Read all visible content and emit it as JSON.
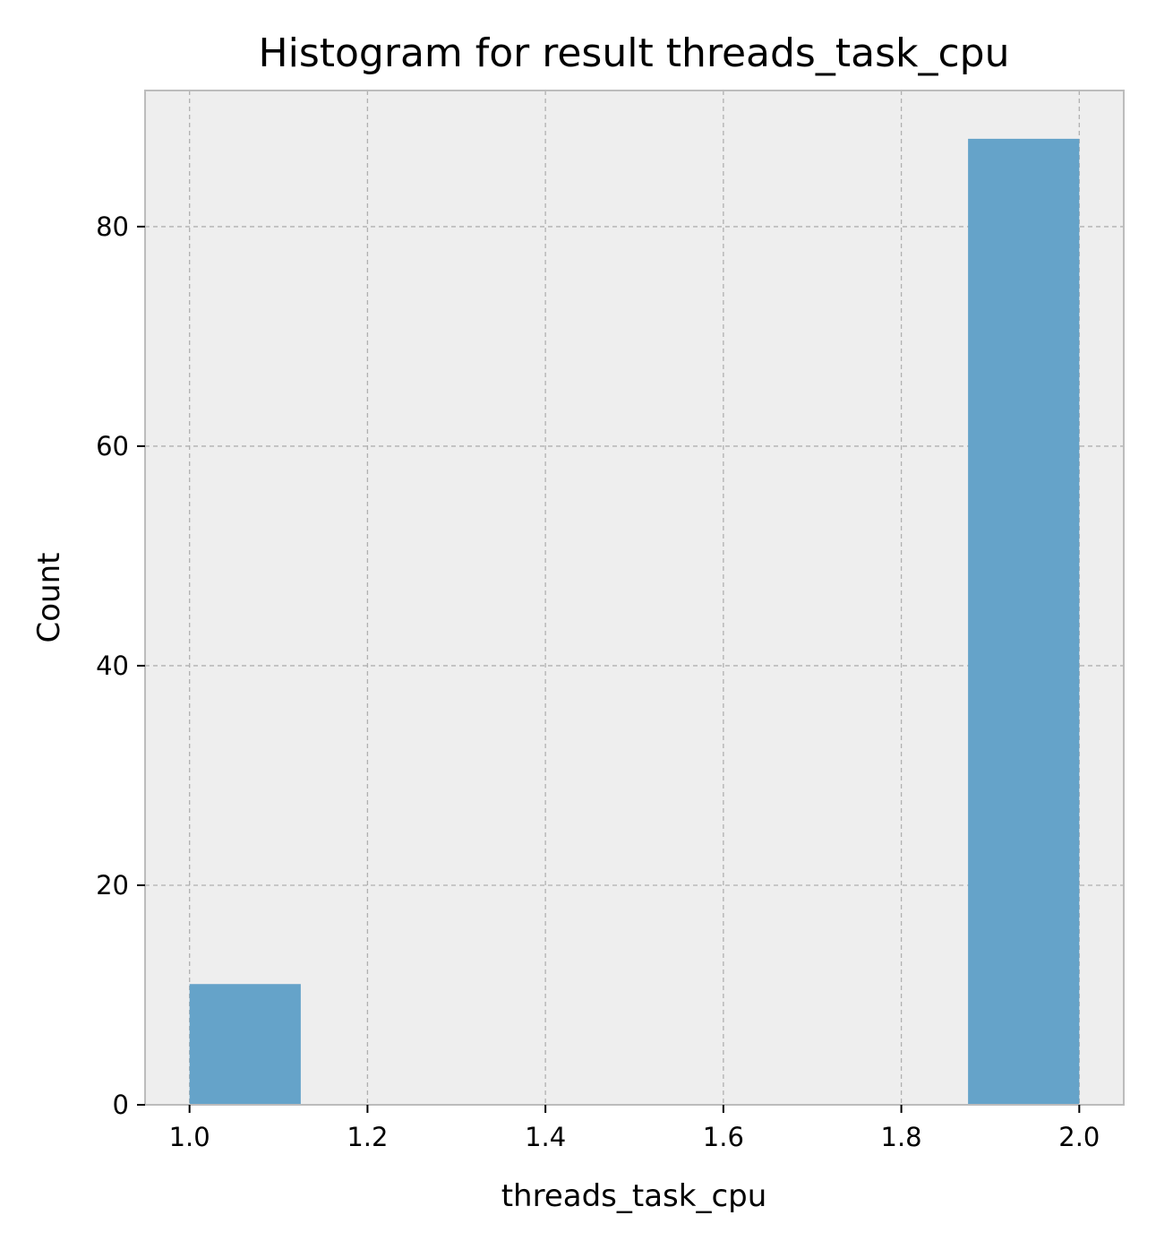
{
  "chart_data": {
    "type": "bar",
    "title": "Histogram for result threads_task_cpu",
    "xlabel": "threads_task_cpu",
    "ylabel": "Count",
    "xlim": [
      0.95,
      2.05
    ],
    "ylim": [
      0,
      92.4
    ],
    "xticks": [
      1.0,
      1.2,
      1.4,
      1.6,
      1.8,
      2.0
    ],
    "xtick_labels": [
      "1.0",
      "1.2",
      "1.4",
      "1.6",
      "1.8",
      "2.0"
    ],
    "yticks": [
      0,
      20,
      40,
      60,
      80
    ],
    "ytick_labels": [
      "0",
      "20",
      "40",
      "60",
      "80"
    ],
    "bins": [
      {
        "start": 1.0,
        "end": 1.125,
        "count": 11
      },
      {
        "start": 1.125,
        "end": 1.25,
        "count": 0
      },
      {
        "start": 1.25,
        "end": 1.375,
        "count": 0
      },
      {
        "start": 1.375,
        "end": 1.5,
        "count": 0
      },
      {
        "start": 1.5,
        "end": 1.625,
        "count": 0
      },
      {
        "start": 1.625,
        "end": 1.75,
        "count": 0
      },
      {
        "start": 1.75,
        "end": 1.875,
        "count": 0
      },
      {
        "start": 1.875,
        "end": 2.0,
        "count": 88
      }
    ],
    "grid": true,
    "colors": {
      "bar": "#65a3c9",
      "plot_background": "#eeeeee",
      "grid": "#b0b0b0",
      "spine": "#bcbcbc"
    }
  }
}
